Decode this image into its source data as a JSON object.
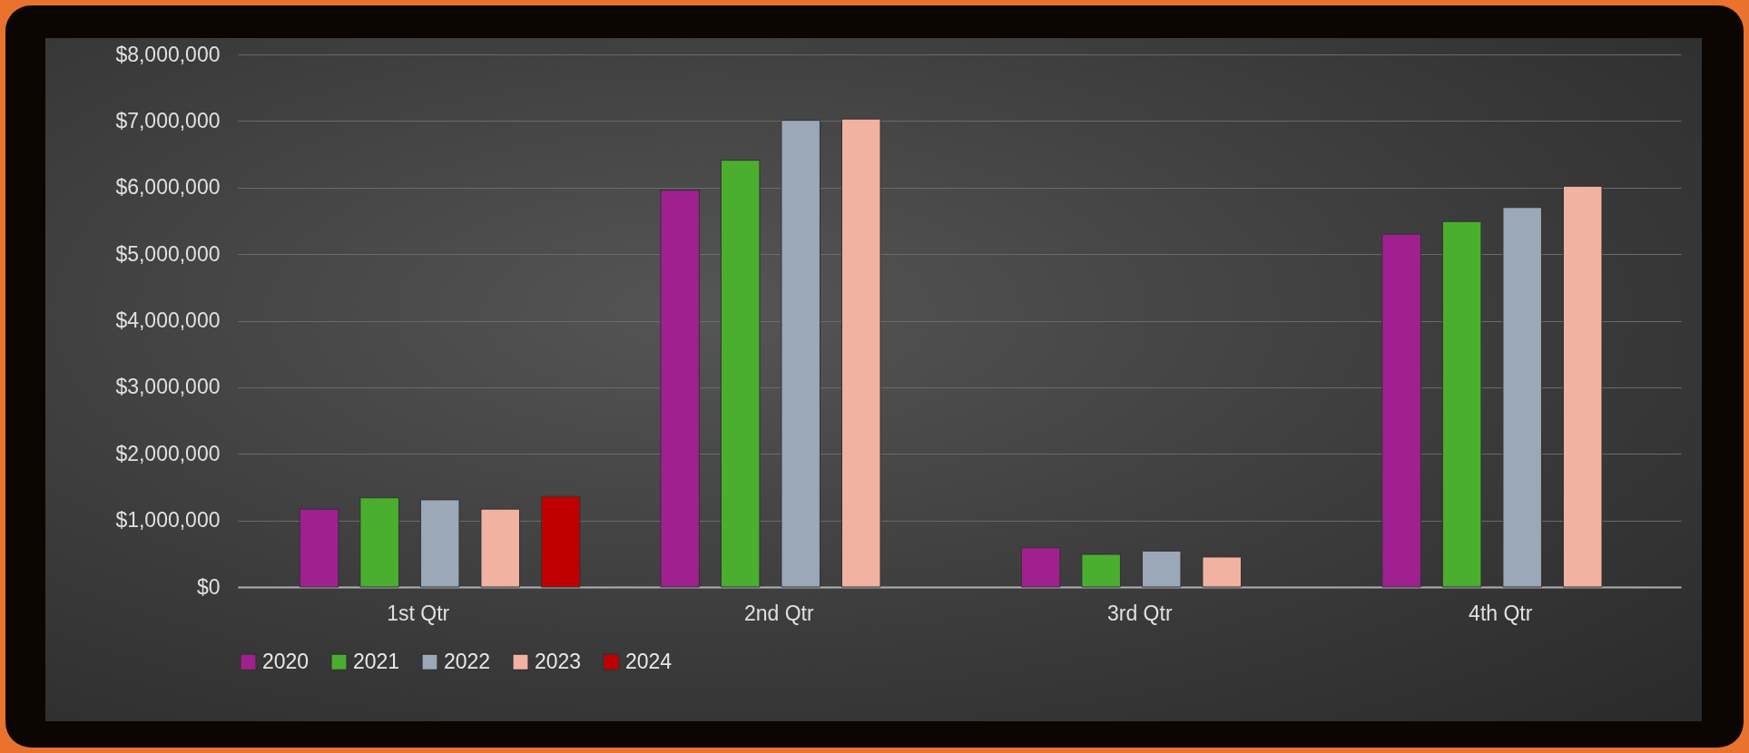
{
  "chart_data": {
    "type": "bar",
    "categories": [
      "1st Qtr",
      "2nd Qtr",
      "3rd Qtr",
      "4th Qtr"
    ],
    "series": [
      {
        "name": "2020",
        "color": "#a0208f",
        "values": [
          1170000,
          5960000,
          590000,
          5300000
        ]
      },
      {
        "name": "2021",
        "color": "#4aae2e",
        "values": [
          1340000,
          6410000,
          490000,
          5490000
        ]
      },
      {
        "name": "2022",
        "color": "#9aa8b8",
        "values": [
          1310000,
          7010000,
          540000,
          5700000
        ]
      },
      {
        "name": "2023",
        "color": "#f2b2a2",
        "values": [
          1170000,
          7030000,
          450000,
          6020000
        ]
      },
      {
        "name": "2024",
        "color": "#c00000",
        "values": [
          1360000,
          null,
          null,
          null
        ]
      }
    ],
    "ylim": [
      0,
      8000000
    ],
    "yticks": [
      {
        "value": 0,
        "label": "$0"
      },
      {
        "value": 1000000,
        "label": "$1,000,000"
      },
      {
        "value": 2000000,
        "label": "$2,000,000"
      },
      {
        "value": 3000000,
        "label": "$3,000,000"
      },
      {
        "value": 4000000,
        "label": "$4,000,000"
      },
      {
        "value": 5000000,
        "label": "$5,000,000"
      },
      {
        "value": 6000000,
        "label": "$6,000,000"
      },
      {
        "value": 7000000,
        "label": "$7,000,000"
      },
      {
        "value": 8000000,
        "label": "$8,000,000"
      }
    ],
    "grid": "y",
    "legend": "bottom"
  }
}
